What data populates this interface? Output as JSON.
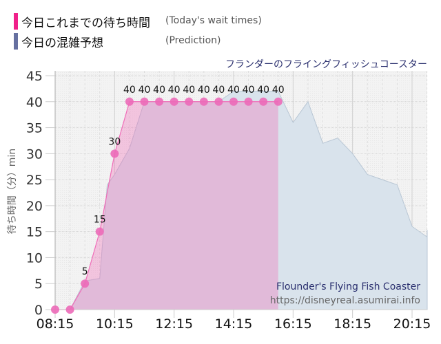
{
  "legend": {
    "items": [
      {
        "label_jp": "今日これまでの待ち時間",
        "label_en": "(Today's wait times)",
        "color": "#f0208a"
      },
      {
        "label_jp": "今日の混雑予想",
        "label_en": "(Prediction)",
        "color": "#6670a0"
      }
    ]
  },
  "ride_title_jp": "フランダーのフライングフィッシュコースター",
  "watermark": {
    "ride_name_en": "Flounder's Flying Fish Coaster",
    "url": "https://disneyreal.asumirai.info"
  },
  "chart_data": {
    "type": "area",
    "title": "フランダーのフライングフィッシュコースター",
    "xlabel": "",
    "ylabel": "待ち時間（分）min",
    "ylim": [
      0,
      45
    ],
    "yticks": [
      0,
      5,
      10,
      15,
      20,
      25,
      30,
      35,
      40,
      45
    ],
    "xticks": [
      "08:15",
      "10:15",
      "12:15",
      "14:15",
      "16:15",
      "18:15",
      "20:15"
    ],
    "grid": true,
    "legend_position": "top-left",
    "series": [
      {
        "name": "今日これまでの待ち時間 (Today's wait times)",
        "color": "#f06cb8",
        "x": [
          "08:15",
          "08:45",
          "09:15",
          "09:45",
          "10:15",
          "10:45",
          "11:15",
          "11:45",
          "12:15",
          "12:45",
          "13:15",
          "13:45",
          "14:15",
          "14:45",
          "15:15",
          "15:45"
        ],
        "values": [
          0,
          0,
          5,
          15,
          30,
          40,
          40,
          40,
          40,
          40,
          40,
          40,
          40,
          40,
          40,
          40
        ],
        "labels": [
          "",
          "",
          "5",
          "15",
          "30",
          "40",
          "40",
          "40",
          "40",
          "40",
          "40",
          "40",
          "40",
          "40",
          "40",
          "40"
        ]
      },
      {
        "name": "今日の混雑予想 (Prediction)",
        "color": "#b8c8d8",
        "x": [
          "08:15",
          "08:45",
          "09:15",
          "09:45",
          "10:00",
          "10:15",
          "10:45",
          "11:15",
          "11:45",
          "12:15",
          "12:45",
          "13:15",
          "13:45",
          "14:15",
          "14:45",
          "15:15",
          "15:45",
          "16:15",
          "16:45",
          "17:15",
          "17:45",
          "18:15",
          "18:45",
          "19:15",
          "19:45",
          "20:15",
          "20:45"
        ],
        "values": [
          0,
          0,
          5.5,
          6,
          24,
          26,
          31,
          40,
          40,
          40,
          40,
          40,
          40,
          42,
          42,
          42,
          42,
          36,
          40,
          32,
          33,
          30,
          26,
          25,
          24,
          16,
          14
        ]
      }
    ]
  },
  "axis": {
    "y_label": "待ち時間（分）min",
    "y_ticks": [
      "0",
      "5",
      "10",
      "15",
      "20",
      "25",
      "30",
      "35",
      "40",
      "45"
    ],
    "x_ticks": [
      "08:15",
      "10:15",
      "12:15",
      "14:15",
      "16:15",
      "18:15",
      "20:15"
    ]
  }
}
